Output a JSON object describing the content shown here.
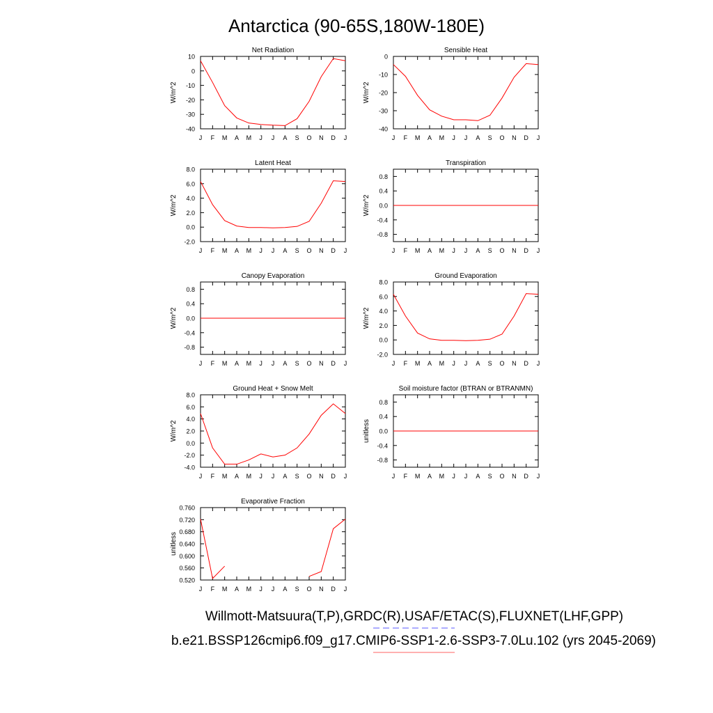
{
  "figure": {
    "title": "Antarctica (90-65S,180W-180E)",
    "footer_line1": "Willmott-Matsuura(T,P),GRDC(R),USAF/ETAC(S),FLUXNET(LHF,GPP)",
    "footer_line2": "b.e21.BSSP126cmip6.f09_g17.CMIP6-SSP1-2.6-SSP3-7.0Lu.102 (yrs 2045-2069)",
    "legend_colors": {
      "dashed": "#7b7bff",
      "solid": "#ff8080"
    }
  },
  "chart_data": [
    {
      "type": "line",
      "title": "Net Radiation",
      "ylabel": "W/m^2",
      "ylim": [
        -40,
        10
      ],
      "yticks": [
        10,
        0,
        -10,
        -20,
        -30,
        -40
      ],
      "ytick_labels": [
        "10",
        "0",
        "-10",
        "-20",
        "-30",
        "-40"
      ],
      "categories": [
        "J",
        "F",
        "M",
        "A",
        "M",
        "J",
        "J",
        "A",
        "S",
        "O",
        "N",
        "D",
        "J"
      ],
      "series": [
        {
          "color": "#ff0000",
          "values": [
            7,
            -8,
            -24,
            -32.5,
            -36,
            -37,
            -37.5,
            -37.8,
            -33,
            -21,
            -4,
            8.5,
            7
          ]
        }
      ]
    },
    {
      "type": "line",
      "title": "Sensible Heat",
      "ylabel": "W/m^2",
      "ylim": [
        -40,
        0
      ],
      "yticks": [
        0,
        -10,
        -20,
        -30,
        -40
      ],
      "ytick_labels": [
        "0",
        "-10",
        "-20",
        "-30",
        "-40"
      ],
      "categories": [
        "J",
        "F",
        "M",
        "A",
        "M",
        "J",
        "J",
        "A",
        "S",
        "O",
        "N",
        "D",
        "J"
      ],
      "series": [
        {
          "color": "#ff0000",
          "values": [
            -4.5,
            -11,
            -21.5,
            -29.5,
            -33,
            -35,
            -35,
            -35.5,
            -32.5,
            -23,
            -11.5,
            -4,
            -4.5
          ]
        }
      ]
    },
    {
      "type": "line",
      "title": "Latent Heat",
      "ylabel": "W/m^2",
      "ylim": [
        -2,
        8
      ],
      "yticks": [
        8,
        6,
        4,
        2,
        0,
        -2
      ],
      "ytick_labels": [
        "8.0",
        "6.0",
        "4.0",
        "2.0",
        "0.0",
        "-2.0"
      ],
      "categories": [
        "J",
        "F",
        "M",
        "A",
        "M",
        "J",
        "J",
        "A",
        "S",
        "O",
        "N",
        "D",
        "J"
      ],
      "series": [
        {
          "color": "#ff0000",
          "values": [
            6.3,
            3.1,
            0.9,
            0.15,
            -0.05,
            -0.05,
            -0.1,
            -0.05,
            0.1,
            0.8,
            3.3,
            6.4,
            6.3
          ]
        }
      ]
    },
    {
      "type": "line",
      "title": "Transpiration",
      "ylabel": "W/m^2",
      "ylim": [
        -1,
        1
      ],
      "yticks": [
        0.8,
        0.4,
        0,
        -0.4,
        -0.8
      ],
      "ytick_labels": [
        "0.8",
        "0.4",
        "0.0",
        "-0.4",
        "-0.8"
      ],
      "categories": [
        "J",
        "F",
        "M",
        "A",
        "M",
        "J",
        "J",
        "A",
        "S",
        "O",
        "N",
        "D",
        "J"
      ],
      "series": [
        {
          "color": "#ff0000",
          "values": [
            0,
            0,
            0,
            0,
            0,
            0,
            0,
            0,
            0,
            0,
            0,
            0,
            0
          ]
        }
      ]
    },
    {
      "type": "line",
      "title": "Canopy Evaporation",
      "ylabel": "W/m^2",
      "ylim": [
        -1,
        1
      ],
      "yticks": [
        0.8,
        0.4,
        0,
        -0.4,
        -0.8
      ],
      "ytick_labels": [
        "0.8",
        "0.4",
        "0.0",
        "-0.4",
        "-0.8"
      ],
      "categories": [
        "J",
        "F",
        "M",
        "A",
        "M",
        "J",
        "J",
        "A",
        "S",
        "O",
        "N",
        "D",
        "J"
      ],
      "series": [
        {
          "color": "#ff0000",
          "values": [
            0,
            0,
            0,
            0,
            0,
            0,
            0,
            0,
            0,
            0,
            0,
            0,
            0
          ]
        }
      ]
    },
    {
      "type": "line",
      "title": "Ground Evaporation",
      "ylabel": "W/m^2",
      "ylim": [
        -2,
        8
      ],
      "yticks": [
        8,
        6,
        4,
        2,
        0,
        -2
      ],
      "ytick_labels": [
        "8.0",
        "6.0",
        "4.0",
        "2.0",
        "0.0",
        "-2.0"
      ],
      "categories": [
        "J",
        "F",
        "M",
        "A",
        "M",
        "J",
        "J",
        "A",
        "S",
        "O",
        "N",
        "D",
        "J"
      ],
      "series": [
        {
          "color": "#ff0000",
          "values": [
            6.3,
            3.3,
            0.95,
            0.15,
            -0.05,
            -0.05,
            -0.1,
            -0.05,
            0.1,
            0.8,
            3.3,
            6.4,
            6.3
          ]
        }
      ]
    },
    {
      "type": "line",
      "title": "Ground Heat + Snow Melt",
      "ylabel": "W/m^2",
      "ylim": [
        -4,
        8
      ],
      "yticks": [
        8,
        6,
        4,
        2,
        0,
        -2,
        -4
      ],
      "ytick_labels": [
        "8.0",
        "6.0",
        "4.0",
        "2.0",
        "0.0",
        "-2.0",
        "-4.0"
      ],
      "categories": [
        "J",
        "F",
        "M",
        "A",
        "M",
        "J",
        "J",
        "A",
        "S",
        "O",
        "N",
        "D",
        "J"
      ],
      "series": [
        {
          "color": "#ff0000",
          "values": [
            4.9,
            -0.8,
            -3.5,
            -3.5,
            -2.8,
            -1.8,
            -2.3,
            -2.0,
            -0.8,
            1.5,
            4.6,
            6.5,
            4.9
          ]
        }
      ]
    },
    {
      "type": "line",
      "title": "Soil moisture factor (BTRAN or BTRANMN)",
      "ylabel": "unitless",
      "ylim": [
        -1,
        1
      ],
      "yticks": [
        0.8,
        0.4,
        0,
        -0.4,
        -0.8
      ],
      "ytick_labels": [
        "0.8",
        "0.4",
        "0.0",
        "-0.4",
        "-0.8"
      ],
      "categories": [
        "J",
        "F",
        "M",
        "A",
        "M",
        "J",
        "J",
        "A",
        "S",
        "O",
        "N",
        "D",
        "J"
      ],
      "series": [
        {
          "color": "#ff0000",
          "values": [
            0,
            0,
            0,
            0,
            0,
            0,
            0,
            0,
            0,
            0,
            0,
            0,
            0
          ]
        }
      ]
    },
    {
      "type": "line",
      "title": "Evaporative Fraction",
      "ylabel": "unitless",
      "ylim": [
        0.52,
        0.76
      ],
      "yticks": [
        0.76,
        0.72,
        0.68,
        0.64,
        0.6,
        0.56,
        0.52
      ],
      "ytick_labels": [
        "0.760",
        "0.720",
        "0.680",
        "0.640",
        "0.600",
        "0.560",
        "0.520"
      ],
      "categories": [
        "J",
        "F",
        "M",
        "A",
        "M",
        "J",
        "J",
        "A",
        "S",
        "O",
        "N",
        "D",
        "J"
      ],
      "series": [
        {
          "color": "#ff0000",
          "values": [
            0.722,
            0.525,
            0.566,
            null,
            null,
            null,
            null,
            null,
            null,
            0.532,
            0.548,
            0.69,
            0.722
          ]
        }
      ]
    }
  ]
}
